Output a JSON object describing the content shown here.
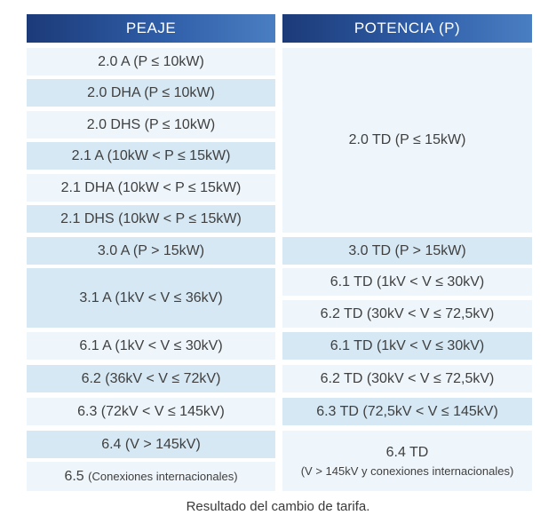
{
  "table": {
    "headers": {
      "left": "PEAJE",
      "right": "POTENCIA (P)"
    },
    "peaje": [
      "2.0 A (P ≤ 10kW)",
      "2.0 DHA (P ≤ 10kW)",
      "2.0 DHS (P ≤ 10kW)",
      "2.1 A (10kW < P ≤ 15kW)",
      "2.1 DHA (10kW < P ≤ 15kW)",
      "2.1 DHS (10kW < P ≤ 15kW)",
      "3.0 A (P > 15kW)",
      "3.1 A (1kV < V ≤ 36kV)",
      "6.1 A (1kV < V ≤ 30kV)",
      "6.2 (36kV < V ≤ 72kV)",
      "6.3 (72kV < V ≤ 145kV)",
      "6.4 (V > 145kV)",
      {
        "code": "6.5",
        "note": "(Conexiones internacionales)"
      }
    ],
    "potencia": [
      "2.0 TD (P ≤ 15kW)",
      "3.0 TD (P > 15kW)",
      "6.1 TD (1kV < V ≤ 30kV)",
      "6.2 TD (30kV < V ≤ 72,5kV)",
      "6.1 TD (1kV < V ≤ 30kV)",
      "6.2 TD (30kV < V ≤ 72,5kV)",
      "6.3 TD (72,5kV < V ≤ 145kV)",
      {
        "code": "6.4 TD",
        "note": "(V > 145kV y conexiones internacionales)"
      }
    ]
  },
  "caption": "Resultado del cambio de tarifa."
}
